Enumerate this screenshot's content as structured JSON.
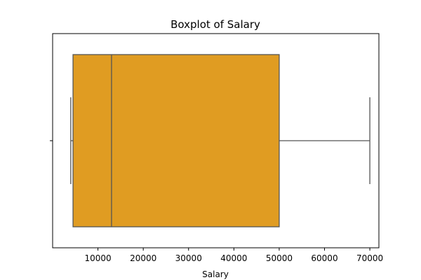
{
  "chart_data": {
    "type": "boxplot",
    "title": "Boxplot of Salary",
    "xlabel": "Salary",
    "ylabel": "",
    "xlim": [
      0,
      72000
    ],
    "xticks": [
      10000,
      20000,
      30000,
      40000,
      50000,
      60000,
      70000
    ],
    "box": {
      "whisker_low": 4000,
      "q1": 4500,
      "median": 13000,
      "q3": 50000,
      "whisker_high": 70000
    },
    "box_color": "#e09c22",
    "line_color": "#555555",
    "grid": false
  }
}
